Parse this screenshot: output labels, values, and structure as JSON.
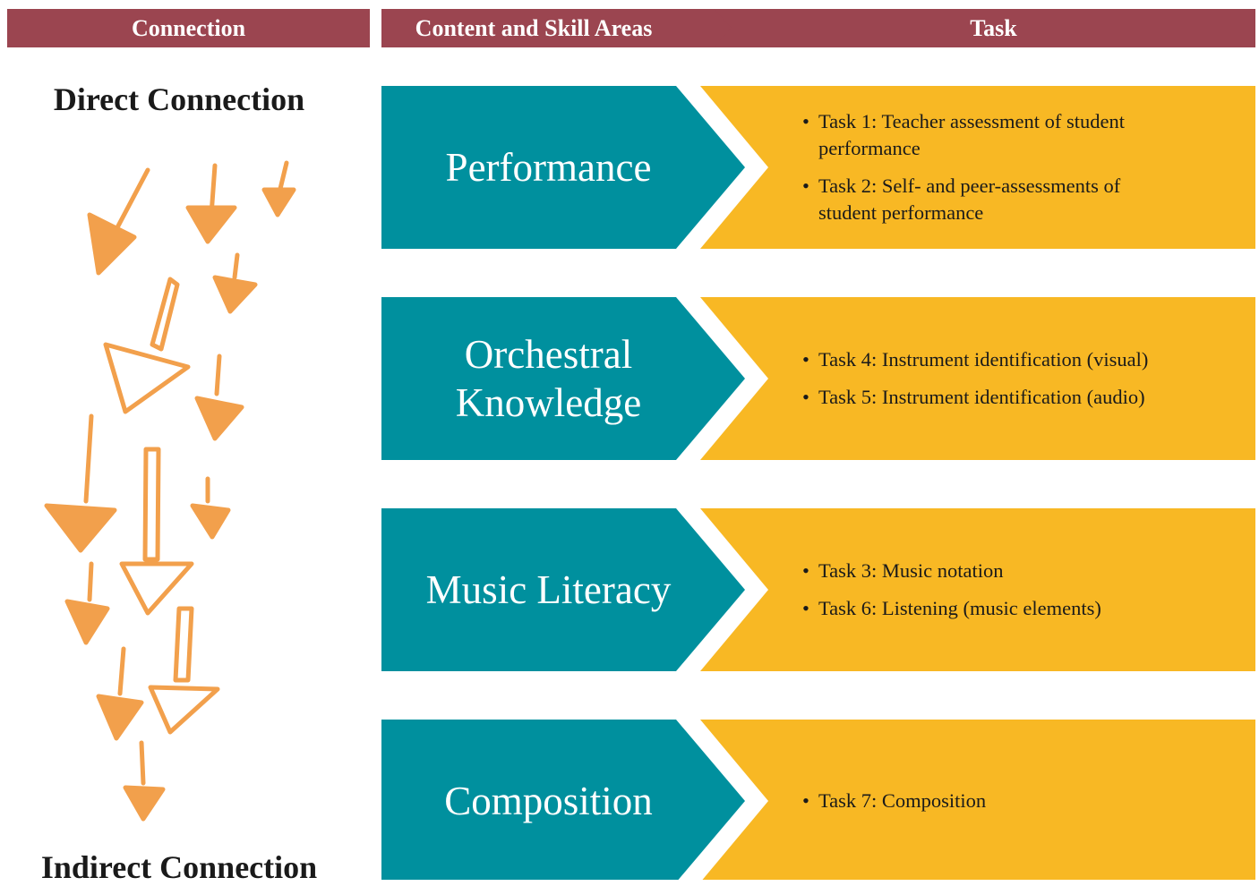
{
  "header": {
    "connection": "Connection",
    "areas": "Content and Skill Areas",
    "task": "Task"
  },
  "connection": {
    "top": "Direct Connection",
    "bottom": "Indirect Connection"
  },
  "rows": [
    {
      "area": "Performance",
      "tasks": [
        "Task 1: Teacher assessment of student performance",
        "Task 2: Self- and peer-assessments of student performance"
      ]
    },
    {
      "area": "Orchestral Knowledge",
      "tasks": [
        "Task 4: Instrument identification (visual)",
        "Task 5: Instrument identification (audio)"
      ]
    },
    {
      "area": "Music Literacy",
      "tasks": [
        "Task 3: Music notation",
        "Task 6: Listening (music elements)"
      ]
    },
    {
      "area": "Composition",
      "tasks": [
        "Task 7: Composition"
      ]
    }
  ]
}
